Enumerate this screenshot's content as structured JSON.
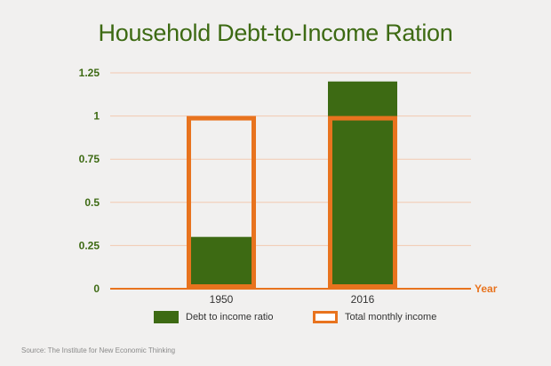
{
  "colors": {
    "accent": "#3d6a13",
    "outline": "#e8731e",
    "grid": "#f2c9b0",
    "background": "#f1f0ef"
  },
  "chart_data": {
    "type": "bar",
    "title": "Household Debt-to-Income Ration",
    "categories": [
      "1950",
      "2016"
    ],
    "series": [
      {
        "name": "Debt to income ratio",
        "values": [
          0.3,
          1.2
        ],
        "style": "filled",
        "color": "#3d6a13"
      },
      {
        "name": "Total monthly income",
        "values": [
          1.0,
          1.0
        ],
        "style": "outline",
        "color": "#e8731e"
      }
    ],
    "xlabel": "Year",
    "ylabel": "",
    "ylim": [
      0,
      1.25
    ],
    "yticks": [
      "0",
      "0.25",
      "0.5",
      "0.75",
      "1",
      "1.25"
    ],
    "grid": true,
    "legend": "bottom"
  },
  "source_note": "Source: The Institute for New Economic Thinking"
}
